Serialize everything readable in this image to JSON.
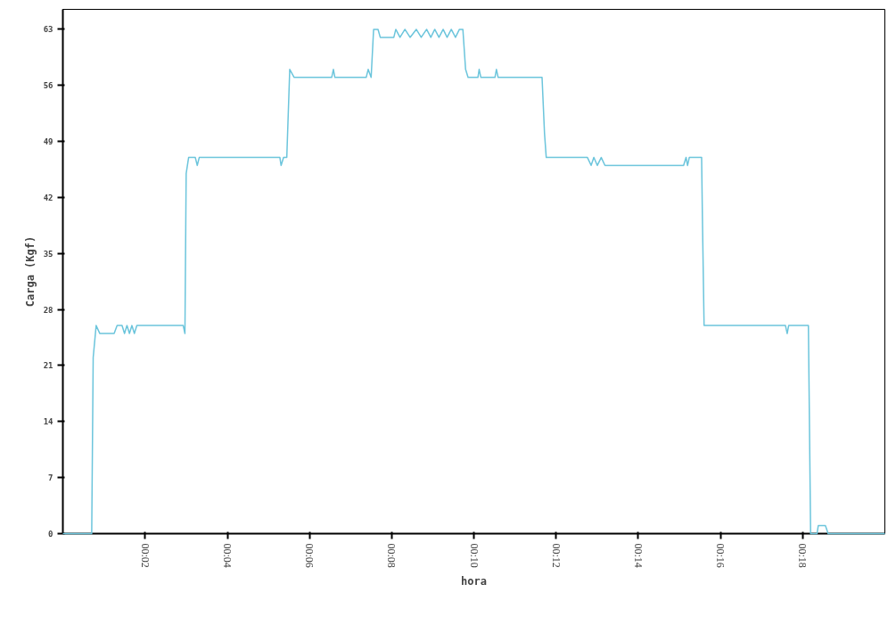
{
  "chart_data": {
    "type": "line",
    "xlabel": "hora",
    "ylabel": "Carga (Kgf)",
    "xlim": [
      0,
      0.3333
    ],
    "ylim": [
      0,
      65.5
    ],
    "xticks": [
      {
        "value": 0.0333,
        "label": "00:02"
      },
      {
        "value": 0.0667,
        "label": "00:04"
      },
      {
        "value": 0.1,
        "label": "00:06"
      },
      {
        "value": 0.1333,
        "label": "00:08"
      },
      {
        "value": 0.1667,
        "label": "00:10"
      },
      {
        "value": 0.2,
        "label": "00:12"
      },
      {
        "value": 0.2333,
        "label": "00:14"
      },
      {
        "value": 0.2667,
        "label": "00:16"
      },
      {
        "value": 0.3,
        "label": "00:18"
      }
    ],
    "yticks": [
      0,
      7,
      14,
      21,
      28,
      35,
      42,
      49,
      56,
      63
    ],
    "grid": false,
    "marker": "none",
    "line_style": "solid",
    "series": [
      {
        "color": "#6cc5dc",
        "x": [
          0,
          0.0117,
          0.0123,
          0.0135,
          0.015,
          0.0208,
          0.022,
          0.024,
          0.025,
          0.026,
          0.027,
          0.028,
          0.029,
          0.03,
          0.0488,
          0.0495,
          0.05,
          0.051,
          0.0537,
          0.0545,
          0.0553,
          0.088,
          0.0885,
          0.0895,
          0.0908,
          0.092,
          0.0938,
          0.109,
          0.1097,
          0.1103,
          0.123,
          0.1238,
          0.125,
          0.126,
          0.1278,
          0.1287,
          0.1342,
          0.135,
          0.1367,
          0.1387,
          0.1408,
          0.1433,
          0.1453,
          0.1475,
          0.1492,
          0.1508,
          0.1525,
          0.1542,
          0.1558,
          0.1575,
          0.1592,
          0.1608,
          0.1622,
          0.1633,
          0.1643,
          0.1683,
          0.1688,
          0.1695,
          0.1752,
          0.1758,
          0.1765,
          0.1943,
          0.1953,
          0.196,
          0.2127,
          0.2142,
          0.2153,
          0.2167,
          0.2183,
          0.2198,
          0.2517,
          0.2527,
          0.2533,
          0.254,
          0.259,
          0.2593,
          0.26,
          0.293,
          0.2937,
          0.2943,
          0.3023,
          0.3032,
          0.3058,
          0.3063,
          0.3092,
          0.3103,
          0.3333
        ],
        "values": [
          0,
          0,
          22,
          26,
          25,
          25,
          26,
          26,
          25,
          26,
          25,
          26,
          25,
          26,
          26,
          25,
          45,
          47,
          47,
          46,
          47,
          47,
          46,
          47,
          47,
          58,
          57,
          57,
          58,
          57,
          57,
          58,
          57,
          63,
          63,
          62,
          62,
          63,
          62,
          63,
          62,
          63,
          62,
          63,
          62,
          63,
          62,
          63,
          62,
          63,
          62,
          63,
          63,
          58,
          57,
          57,
          58,
          57,
          57,
          58,
          57,
          57,
          50,
          47,
          47,
          46,
          47,
          46,
          47,
          46,
          46,
          47,
          46,
          47,
          47,
          40,
          26,
          26,
          25,
          26,
          26,
          0,
          0,
          1,
          1,
          0,
          0
        ]
      }
    ]
  }
}
